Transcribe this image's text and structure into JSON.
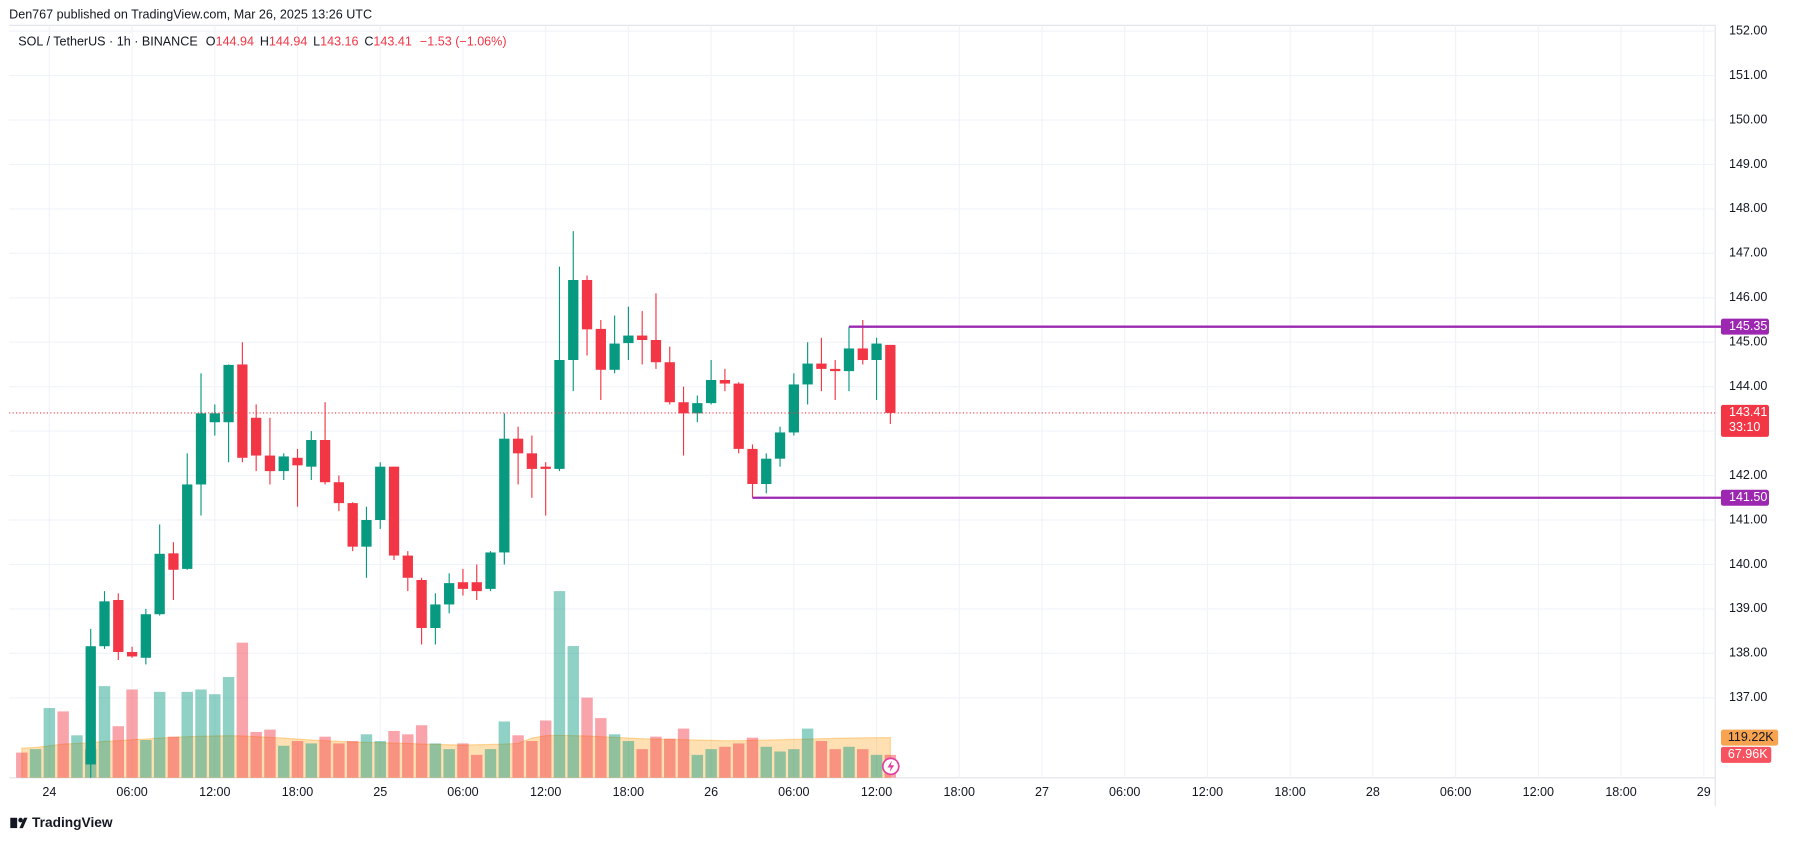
{
  "chart_data": {
    "type": "candlestick",
    "header": "Den767 published on TradingView.com, Mar 26, 2025 13:26 UTC",
    "symbol": "SOL / TetherUS · 1h · BINANCE",
    "ohlc_labels": [
      "O",
      "H",
      "L",
      "C"
    ],
    "change": "−1.53 (−1.06%)",
    "countdown": "33:10",
    "footer": "TradingView",
    "up_color": "#089981",
    "down_color": "#f23645",
    "grid": true,
    "x": [
      "2025-03-23T22:00",
      "2025-03-23T23:00",
      "2025-03-24T00:00",
      "2025-03-24T01:00",
      "2025-03-24T02:00",
      "2025-03-24T03:00",
      "2025-03-24T04:00",
      "2025-03-24T05:00",
      "2025-03-24T06:00",
      "2025-03-24T07:00",
      "2025-03-24T08:00",
      "2025-03-24T09:00",
      "2025-03-24T10:00",
      "2025-03-24T11:00",
      "2025-03-24T12:00",
      "2025-03-24T13:00",
      "2025-03-24T14:00",
      "2025-03-24T15:00",
      "2025-03-24T16:00",
      "2025-03-24T17:00",
      "2025-03-24T18:00",
      "2025-03-24T19:00",
      "2025-03-24T20:00",
      "2025-03-24T21:00",
      "2025-03-24T22:00",
      "2025-03-24T23:00",
      "2025-03-25T00:00",
      "2025-03-25T01:00",
      "2025-03-25T02:00",
      "2025-03-25T03:00",
      "2025-03-25T04:00",
      "2025-03-25T05:00",
      "2025-03-25T06:00",
      "2025-03-25T07:00",
      "2025-03-25T08:00",
      "2025-03-25T09:00",
      "2025-03-25T10:00",
      "2025-03-25T11:00",
      "2025-03-25T12:00",
      "2025-03-25T13:00",
      "2025-03-25T14:00",
      "2025-03-25T15:00",
      "2025-03-25T16:00",
      "2025-03-25T17:00",
      "2025-03-25T18:00",
      "2025-03-25T19:00",
      "2025-03-25T20:00",
      "2025-03-25T21:00",
      "2025-03-25T22:00",
      "2025-03-25T23:00",
      "2025-03-26T00:00",
      "2025-03-26T01:00",
      "2025-03-26T02:00",
      "2025-03-26T03:00",
      "2025-03-26T04:00",
      "2025-03-26T05:00",
      "2025-03-26T06:00",
      "2025-03-26T07:00",
      "2025-03-26T08:00",
      "2025-03-26T09:00",
      "2025-03-26T10:00",
      "2025-03-26T11:00",
      "2025-03-26T12:00",
      "2025-03-26T13:00"
    ],
    "open": [
      null,
      null,
      null,
      null,
      null,
      135.5,
      138.16,
      139.2,
      138.03,
      137.9,
      138.88,
      140.25,
      139.9,
      141.8,
      143.2,
      143.2,
      144.5,
      143.3,
      142.45,
      142.1,
      142.4,
      142.2,
      142.8,
      141.85,
      141.38,
      140.4,
      141.0,
      142.2,
      140.2,
      139.65,
      138.57,
      139.1,
      139.6,
      139.6,
      139.45,
      140.27,
      142.83,
      142.5,
      142.2,
      142.15,
      144.6,
      146.4,
      145.3,
      144.38,
      144.98,
      145.15,
      145.05,
      144.55,
      143.65,
      143.4,
      143.63,
      144.15,
      144.07,
      142.6,
      141.81,
      142.38,
      142.97,
      144.05,
      144.52,
      144.4,
      144.35,
      144.86,
      144.6,
      144.94
    ],
    "high": [
      null,
      null,
      null,
      null,
      null,
      138.55,
      139.4,
      139.35,
      138.15,
      139.0,
      140.9,
      140.5,
      142.5,
      144.3,
      143.6,
      144.5,
      145.0,
      143.6,
      143.3,
      142.5,
      142.6,
      143.0,
      143.65,
      142.0,
      141.4,
      141.3,
      142.3,
      142.2,
      140.3,
      139.7,
      139.35,
      139.8,
      139.9,
      140.0,
      140.3,
      143.4,
      143.1,
      142.9,
      142.3,
      146.7,
      147.5,
      146.5,
      145.5,
      145.6,
      145.8,
      145.7,
      146.1,
      144.9,
      144.0,
      143.8,
      144.6,
      144.4,
      144.1,
      142.7,
      142.5,
      143.1,
      144.3,
      145.0,
      145.1,
      144.6,
      145.35,
      145.5,
      145.1,
      144.94
    ],
    "low": [
      null,
      null,
      null,
      null,
      null,
      135.0,
      138.1,
      137.85,
      137.9,
      137.75,
      138.85,
      139.2,
      139.88,
      141.1,
      142.9,
      142.3,
      142.3,
      142.1,
      141.8,
      141.9,
      141.3,
      141.9,
      141.8,
      141.2,
      140.3,
      139.7,
      140.8,
      140.1,
      139.4,
      138.2,
      138.2,
      138.9,
      139.3,
      139.2,
      139.4,
      140.0,
      141.8,
      141.5,
      141.1,
      142.1,
      143.9,
      144.7,
      143.7,
      144.3,
      144.6,
      144.5,
      144.4,
      143.6,
      142.45,
      143.2,
      143.6,
      143.9,
      142.5,
      141.5,
      141.6,
      142.2,
      142.9,
      143.6,
      143.9,
      143.7,
      143.9,
      144.5,
      143.7,
      143.16
    ],
    "close": [
      null,
      null,
      null,
      null,
      null,
      138.16,
      139.17,
      138.03,
      137.93,
      138.88,
      140.24,
      139.88,
      141.8,
      143.4,
      143.4,
      144.49,
      142.4,
      142.45,
      142.1,
      142.43,
      142.23,
      142.8,
      141.85,
      141.38,
      140.4,
      141.0,
      142.2,
      140.2,
      139.7,
      138.57,
      139.1,
      139.58,
      139.45,
      139.4,
      140.27,
      142.83,
      142.5,
      142.15,
      142.15,
      144.6,
      146.4,
      145.29,
      144.38,
      144.97,
      145.15,
      145.05,
      144.55,
      143.65,
      143.4,
      143.63,
      144.15,
      144.07,
      142.6,
      141.81,
      142.38,
      142.97,
      144.05,
      144.52,
      144.4,
      144.35,
      144.86,
      144.6,
      144.97,
      143.41
    ],
    "volume": {
      "values": [
        74800,
        85000,
        207000,
        197000,
        126000,
        85000,
        272000,
        153000,
        262000,
        112000,
        255000,
        122000,
        255000,
        262000,
        248000,
        299000,
        401000,
        136000,
        143000,
        95000,
        109000,
        102000,
        122000,
        102000,
        109000,
        129000,
        109000,
        139000,
        129000,
        156000,
        102000,
        85000,
        102000,
        68000,
        85000,
        167000,
        126000,
        109000,
        170000,
        554000,
        391000,
        238000,
        177000,
        129000,
        109000,
        85000,
        122000,
        116000,
        146000,
        68000,
        85000,
        92000,
        102000,
        119000,
        92000,
        78000,
        85000,
        146000,
        109000,
        85000,
        92000,
        85000,
        68000,
        67960
      ],
      "colors": [
        "#f23645",
        "#089981",
        "#089981",
        "#f23645",
        "#089981",
        "#089981",
        "#089981",
        "#f23645",
        "#f23645",
        "#089981",
        "#089981",
        "#f23645",
        "#089981",
        "#089981",
        "#089981",
        "#089981",
        "#f23645",
        "#f23645",
        "#f23645",
        "#089981",
        "#f23645",
        "#089981",
        "#f23645",
        "#f23645",
        "#f23645",
        "#089981",
        "#089981",
        "#f23645",
        "#f23645",
        "#f23645",
        "#089981",
        "#089981",
        "#f23645",
        "#f23645",
        "#089981",
        "#089981",
        "#f23645",
        "#f23645",
        "#f23645",
        "#089981",
        "#089981",
        "#f23645",
        "#f23645",
        "#089981",
        "#089981",
        "#f23645",
        "#f23645",
        "#f23645",
        "#f23645",
        "#089981",
        "#089981",
        "#f23645",
        "#f23645",
        "#f23645",
        "#089981",
        "#089981",
        "#089981",
        "#089981",
        "#f23645",
        "#f23645",
        "#089981",
        "#f23645",
        "#089981",
        "#f23645"
      ],
      "last_value_label": "67.96K",
      "ma": [
        88000,
        90000,
        95000,
        100000,
        102000,
        104000,
        108000,
        110000,
        113000,
        115000,
        118000,
        120000,
        122000,
        123000,
        124000,
        125000,
        124000,
        122000,
        120000,
        118000,
        115000,
        112000,
        110000,
        108000,
        106000,
        105000,
        104000,
        103000,
        102000,
        100000,
        99000,
        98000,
        97000,
        98000,
        99000,
        100000,
        102000,
        118000,
        125000,
        126000,
        125000,
        124000,
        122000,
        120000,
        118000,
        116000,
        115000,
        114000,
        113000,
        112000,
        111000,
        110000,
        110000,
        111000,
        112000,
        113000,
        114000,
        115000,
        116000,
        117000,
        118000,
        118500,
        119000,
        119220
      ],
      "ma_last_label": "119.22K",
      "ma_color": "#ff9800",
      "ylim": [
        0,
        560000
      ]
    },
    "levels": {
      "values": [
        145.35,
        141.5
      ],
      "value_labels": [
        "145.35",
        "141.50"
      ],
      "start": [
        "2025-03-26T10:00",
        "2025-03-26T03:00"
      ],
      "color": "#9c27b0"
    },
    "xlim": [
      "2025-03-23T21:05",
      "2025-03-29T00:50"
    ],
    "xticks": [
      {
        "value": "2025-03-24T00:00",
        "label": "24"
      },
      {
        "value": "2025-03-24T06:00",
        "label": "06:00"
      },
      {
        "value": "2025-03-24T12:00",
        "label": "12:00"
      },
      {
        "value": "2025-03-24T18:00",
        "label": "18:00"
      },
      {
        "value": "2025-03-25T00:00",
        "label": "25"
      },
      {
        "value": "2025-03-25T06:00",
        "label": "06:00"
      },
      {
        "value": "2025-03-25T12:00",
        "label": "12:00"
      },
      {
        "value": "2025-03-25T18:00",
        "label": "18:00"
      },
      {
        "value": "2025-03-26T00:00",
        "label": "26"
      },
      {
        "value": "2025-03-26T06:00",
        "label": "06:00"
      },
      {
        "value": "2025-03-26T12:00",
        "label": "12:00"
      },
      {
        "value": "2025-03-26T18:00",
        "label": "18:00"
      },
      {
        "value": "2025-03-27T00:00",
        "label": "27"
      },
      {
        "value": "2025-03-27T06:00",
        "label": "06:00"
      },
      {
        "value": "2025-03-27T12:00",
        "label": "12:00"
      },
      {
        "value": "2025-03-27T18:00",
        "label": "18:00"
      },
      {
        "value": "2025-03-28T00:00",
        "label": "28"
      },
      {
        "value": "2025-03-28T06:00",
        "label": "06:00"
      },
      {
        "value": "2025-03-28T12:00",
        "label": "12:00"
      },
      {
        "value": "2025-03-28T18:00",
        "label": "18:00"
      },
      {
        "value": "2025-03-29T00:00",
        "label": "29"
      }
    ],
    "ylim": [
      135.2,
      152.13
    ],
    "yticks": [
      {
        "value": 137,
        "label": "137.00"
      },
      {
        "value": 138,
        "label": "138.00"
      },
      {
        "value": 139,
        "label": "139.00"
      },
      {
        "value": 140,
        "label": "140.00"
      },
      {
        "value": 141,
        "label": "141.00"
      },
      {
        "value": 142,
        "label": "142.00"
      },
      {
        "value": 143,
        "label": "143.00"
      },
      {
        "value": 144,
        "label": "144.00"
      },
      {
        "value": 145,
        "label": "145.00"
      },
      {
        "value": 146,
        "label": "146.00"
      },
      {
        "value": 147,
        "label": "147.00"
      },
      {
        "value": 148,
        "label": "148.00"
      },
      {
        "value": 149,
        "label": "149.00"
      },
      {
        "value": 150,
        "label": "150.00"
      },
      {
        "value": 151,
        "label": "151.00"
      },
      {
        "value": 152,
        "label": "152.00"
      }
    ]
  }
}
